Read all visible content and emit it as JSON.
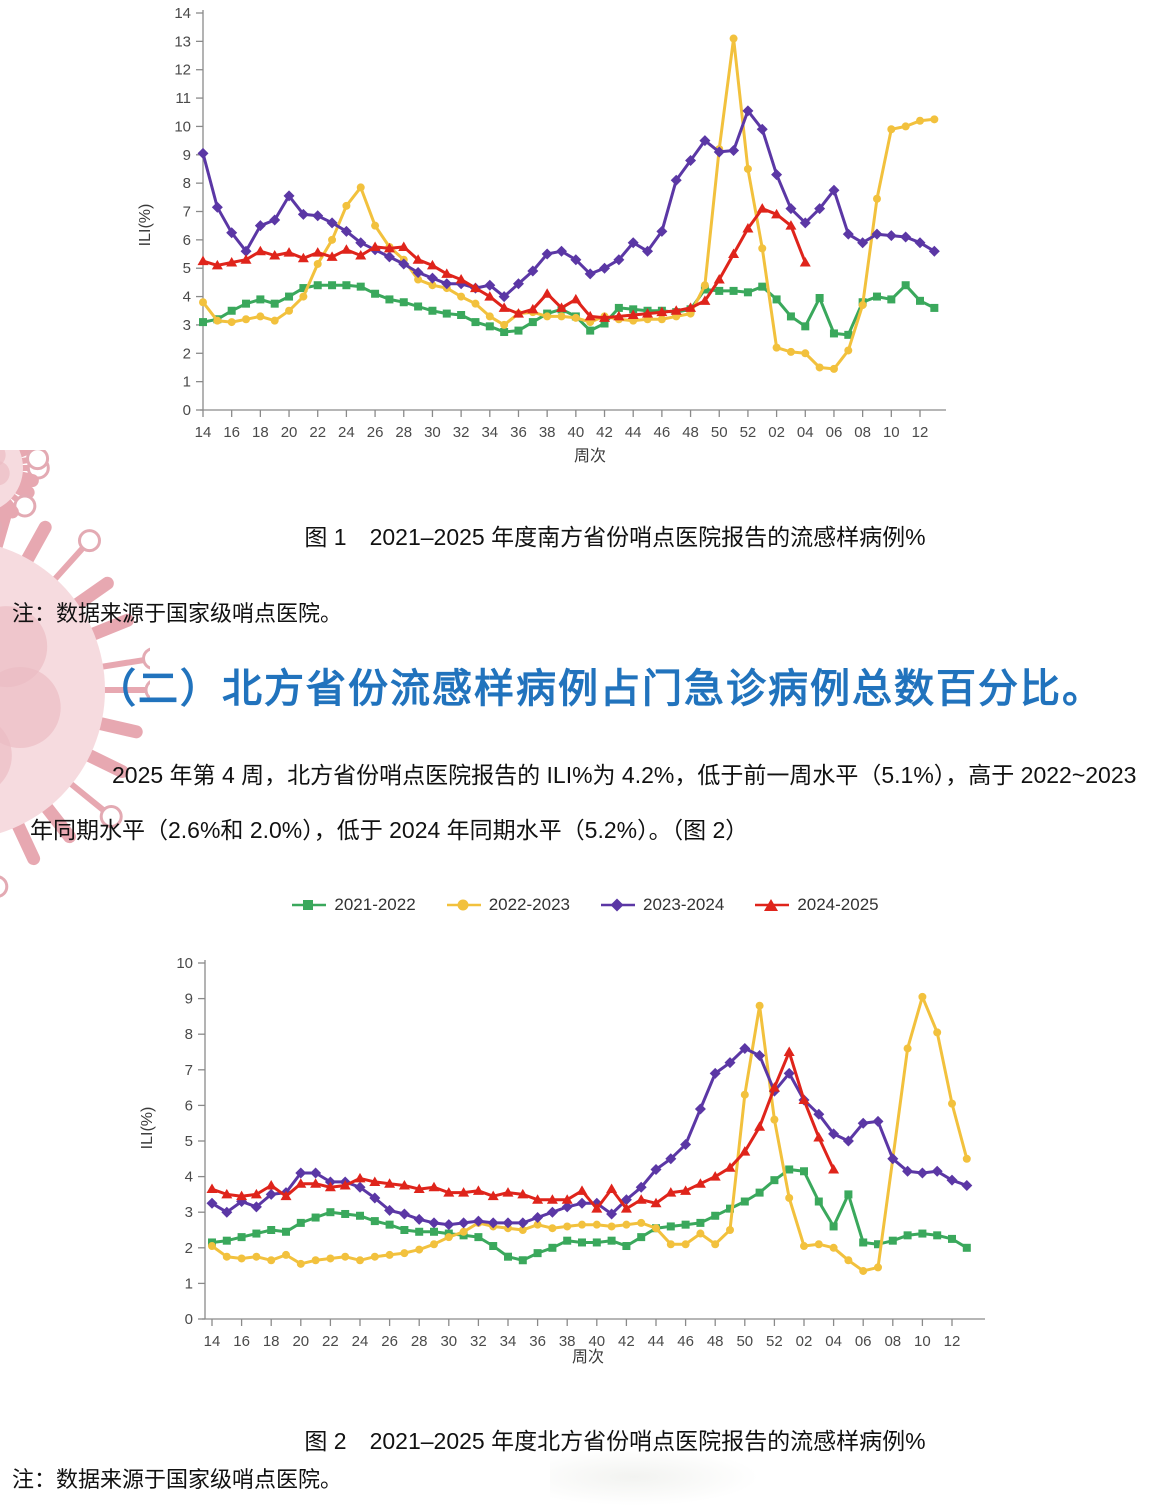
{
  "figure1": {
    "caption": "图 1　2021–2025 年度南方省份哨点医院报告的流感样病例%",
    "note": "注：数据来源于国家级哨点医院。"
  },
  "section": {
    "heading": "（二）北方省份流感样病例占门急诊病例总数百分比。",
    "paragraph": "2025 年第 4 周，北方省份哨点医院报告的 ILI%为 4.2%，低于前一周水平（5.1%），高于 2022~2023 年同期水平（2.6%和 2.0%），低于 2024 年同期水平（5.2%）。（图 2）"
  },
  "figure2": {
    "caption": "图 2　2021–2025 年度北方省份哨点医院报告的流感样病例%",
    "note": "注：数据来源于国家级哨点医院。"
  },
  "legend": {
    "position": "top-of-figure-2",
    "items": [
      {
        "label": "2021-2022",
        "color": "#3aa85c",
        "marker": "square"
      },
      {
        "label": "2022-2023",
        "color": "#f2c13d",
        "marker": "circle"
      },
      {
        "label": "2023-2024",
        "color": "#5b37a5",
        "marker": "diamond"
      },
      {
        "label": "2024-2025",
        "color": "#df241b",
        "marker": "triangle"
      }
    ]
  },
  "chart_data": [
    {
      "type": "line",
      "title": "南方省份哨点医院报告的流感样病例%（图 1）",
      "xlabel": "周次",
      "ylabel": "ILI(%)",
      "ylim": [
        0,
        14
      ],
      "grid": false,
      "x": [
        "14",
        "15",
        "16",
        "17",
        "18",
        "19",
        "20",
        "21",
        "22",
        "23",
        "24",
        "25",
        "26",
        "27",
        "28",
        "29",
        "30",
        "31",
        "32",
        "33",
        "34",
        "35",
        "36",
        "37",
        "38",
        "39",
        "40",
        "41",
        "42",
        "43",
        "44",
        "45",
        "46",
        "47",
        "48",
        "49",
        "50",
        "51",
        "52",
        "01",
        "02",
        "03",
        "04",
        "05",
        "06",
        "07",
        "08",
        "09",
        "10",
        "11",
        "12",
        "13"
      ],
      "x_tick_labels_shown": [
        "14",
        "16",
        "18",
        "20",
        "22",
        "24",
        "26",
        "28",
        "30",
        "32",
        "34",
        "36",
        "38",
        "40",
        "42",
        "44",
        "46",
        "48",
        "50",
        "52",
        "02",
        "04",
        "06",
        "08",
        "10",
        "12"
      ],
      "series": [
        {
          "name": "2021-2022",
          "color": "#3aa85c",
          "marker": "square",
          "values": [
            3.1,
            3.2,
            3.5,
            3.75,
            3.9,
            3.75,
            4.0,
            4.3,
            4.4,
            4.4,
            4.4,
            4.35,
            4.1,
            3.9,
            3.8,
            3.65,
            3.5,
            3.4,
            3.35,
            3.1,
            2.95,
            2.75,
            2.8,
            3.1,
            3.4,
            3.55,
            3.3,
            2.8,
            3.05,
            3.6,
            3.55,
            3.5,
            3.5,
            3.45,
            3.55,
            4.25,
            4.2,
            4.2,
            4.15,
            4.35,
            3.9,
            3.3,
            2.95,
            3.95,
            2.7,
            2.65,
            3.8,
            4.0,
            3.9,
            4.4,
            3.85,
            3.6
          ]
        },
        {
          "name": "2022-2023",
          "color": "#f2c13d",
          "marker": "circle",
          "values": [
            3.8,
            3.15,
            3.1,
            3.2,
            3.3,
            3.15,
            3.5,
            4.0,
            5.15,
            6.0,
            7.2,
            7.85,
            6.5,
            5.75,
            5.3,
            4.6,
            4.4,
            4.3,
            4.0,
            3.75,
            3.3,
            3.0,
            3.4,
            3.45,
            3.3,
            3.3,
            3.25,
            3.1,
            3.3,
            3.2,
            3.15,
            3.2,
            3.2,
            3.3,
            3.4,
            4.4,
            9.2,
            13.1,
            8.5,
            5.7,
            2.2,
            2.05,
            2.0,
            1.5,
            1.45,
            2.1,
            3.7,
            7.45,
            9.9,
            10.0,
            10.2,
            10.25
          ]
        },
        {
          "name": "2023-2024",
          "color": "#5b37a5",
          "marker": "diamond",
          "values": [
            9.05,
            7.15,
            6.25,
            5.6,
            6.5,
            6.7,
            7.55,
            6.9,
            6.85,
            6.6,
            6.3,
            5.9,
            5.65,
            5.4,
            5.15,
            4.85,
            4.65,
            4.45,
            4.45,
            4.3,
            4.4,
            4.0,
            4.45,
            4.9,
            5.5,
            5.6,
            5.3,
            4.8,
            5.0,
            5.3,
            5.9,
            5.6,
            6.3,
            8.1,
            8.8,
            9.5,
            9.1,
            9.15,
            10.55,
            9.9,
            8.3,
            7.1,
            6.6,
            7.1,
            7.75,
            6.2,
            5.9,
            6.2,
            6.15,
            6.1,
            5.9,
            5.6
          ]
        },
        {
          "name": "2024-2025",
          "color": "#df241b",
          "marker": "triangle",
          "values": [
            5.25,
            5.1,
            5.2,
            5.3,
            5.6,
            5.45,
            5.55,
            5.35,
            5.55,
            5.4,
            5.65,
            5.45,
            5.75,
            5.7,
            5.75,
            5.3,
            5.1,
            4.8,
            4.6,
            4.3,
            4.0,
            3.6,
            3.4,
            3.55,
            4.1,
            3.6,
            3.9,
            3.3,
            3.25,
            3.3,
            3.35,
            3.4,
            3.45,
            3.5,
            3.6,
            3.85,
            4.6,
            5.5,
            6.4,
            7.1,
            6.9,
            6.5,
            5.2
          ]
        }
      ]
    },
    {
      "type": "line",
      "title": "北方省份哨点医院报告的流感样病例%（图 2）",
      "xlabel": "周次",
      "ylabel": "ILI(%)",
      "ylim": [
        0,
        10
      ],
      "grid": false,
      "legend_position": "top",
      "x": [
        "14",
        "15",
        "16",
        "17",
        "18",
        "19",
        "20",
        "21",
        "22",
        "23",
        "24",
        "25",
        "26",
        "27",
        "28",
        "29",
        "30",
        "31",
        "32",
        "33",
        "34",
        "35",
        "36",
        "37",
        "38",
        "39",
        "40",
        "41",
        "42",
        "43",
        "44",
        "45",
        "46",
        "47",
        "48",
        "49",
        "50",
        "51",
        "52",
        "01",
        "02",
        "03",
        "04",
        "05",
        "06",
        "07",
        "08",
        "09",
        "10",
        "11",
        "12",
        "13"
      ],
      "x_tick_labels_shown": [
        "14",
        "16",
        "18",
        "20",
        "22",
        "24",
        "26",
        "28",
        "30",
        "32",
        "34",
        "36",
        "38",
        "40",
        "42",
        "44",
        "46",
        "48",
        "50",
        "52",
        "02",
        "04",
        "06",
        "08",
        "10",
        "12"
      ],
      "series": [
        {
          "name": "2021-2022",
          "color": "#3aa85c",
          "marker": "square",
          "values": [
            2.15,
            2.2,
            2.3,
            2.4,
            2.5,
            2.45,
            2.7,
            2.85,
            3.0,
            2.95,
            2.9,
            2.75,
            2.65,
            2.5,
            2.45,
            2.45,
            2.4,
            2.35,
            2.3,
            2.05,
            1.75,
            1.65,
            1.85,
            2.0,
            2.2,
            2.15,
            2.15,
            2.2,
            2.05,
            2.3,
            2.55,
            2.6,
            2.65,
            2.7,
            2.9,
            3.1,
            3.3,
            3.55,
            3.9,
            4.2,
            4.15,
            3.3,
            2.6,
            3.5,
            2.15,
            2.1,
            2.2,
            2.35,
            2.4,
            2.35,
            2.25,
            2.0
          ]
        },
        {
          "name": "2022-2023",
          "color": "#f2c13d",
          "marker": "circle",
          "values": [
            2.05,
            1.75,
            1.7,
            1.75,
            1.65,
            1.8,
            1.55,
            1.65,
            1.7,
            1.75,
            1.65,
            1.75,
            1.8,
            1.85,
            1.95,
            2.1,
            2.3,
            2.45,
            2.7,
            2.6,
            2.55,
            2.5,
            2.65,
            2.55,
            2.6,
            2.65,
            2.65,
            2.6,
            2.65,
            2.7,
            2.55,
            2.1,
            2.1,
            2.4,
            2.1,
            2.5,
            6.3,
            8.8,
            5.6,
            3.4,
            2.05,
            2.1,
            2.0,
            1.65,
            1.35,
            1.45,
            4.5,
            7.6,
            9.05,
            8.05,
            6.05,
            4.5
          ]
        },
        {
          "name": "2023-2024",
          "color": "#5b37a5",
          "marker": "diamond",
          "values": [
            3.25,
            3.0,
            3.3,
            3.15,
            3.5,
            3.55,
            4.1,
            4.1,
            3.85,
            3.85,
            3.7,
            3.4,
            3.05,
            2.95,
            2.8,
            2.7,
            2.65,
            2.7,
            2.75,
            2.7,
            2.7,
            2.7,
            2.85,
            3.0,
            3.15,
            3.25,
            3.25,
            2.95,
            3.35,
            3.7,
            4.2,
            4.5,
            4.9,
            5.9,
            6.9,
            7.2,
            7.6,
            7.4,
            6.4,
            6.9,
            6.15,
            5.75,
            5.2,
            5.0,
            5.5,
            5.55,
            4.5,
            4.15,
            4.1,
            4.15,
            3.9,
            3.75
          ]
        },
        {
          "name": "2024-2025",
          "color": "#df241b",
          "marker": "triangle",
          "values": [
            3.65,
            3.5,
            3.45,
            3.5,
            3.75,
            3.45,
            3.8,
            3.8,
            3.7,
            3.75,
            3.95,
            3.85,
            3.8,
            3.75,
            3.65,
            3.7,
            3.55,
            3.55,
            3.6,
            3.45,
            3.55,
            3.5,
            3.35,
            3.35,
            3.35,
            3.6,
            3.1,
            3.65,
            3.1,
            3.35,
            3.25,
            3.55,
            3.6,
            3.8,
            4.0,
            4.25,
            4.7,
            5.4,
            6.5,
            7.5,
            6.15,
            5.1,
            4.2
          ]
        }
      ]
    }
  ]
}
